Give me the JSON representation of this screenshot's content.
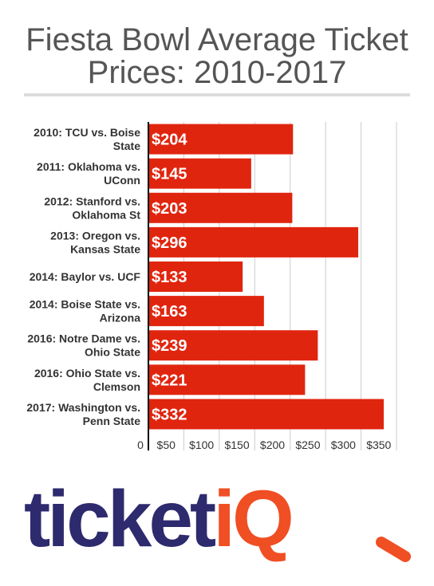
{
  "page": {
    "title": "Fiesta Bowl Average Ticket\nPrices: 2010-2017"
  },
  "logo": {
    "text_main": "ticket",
    "text_accent": "iQ",
    "color_main": "#2e2a6e",
    "color_accent": "#f04e23"
  },
  "colors": {
    "bar": "#e0250f",
    "title": "#555555",
    "label": "#333333",
    "grid": "#cccccc",
    "axis": "#000000"
  },
  "chart_data": {
    "type": "bar",
    "orientation": "horizontal",
    "title": "Fiesta Bowl Average Ticket Prices: 2010-2017",
    "categories": [
      [
        "2010: TCU vs. Boise",
        "State"
      ],
      [
        "2011: Oklahoma vs.",
        "UConn"
      ],
      [
        "2012: Stanford vs.",
        "Oklahoma St"
      ],
      [
        "2013: Oregon vs.",
        "Kansas State"
      ],
      [
        "2014: Baylor vs. UCF"
      ],
      [
        "2014: Boise State vs.",
        "Arizona"
      ],
      [
        "2016: Notre Dame vs.",
        "Ohio State"
      ],
      [
        "2016: Ohio State vs.",
        "Clemson"
      ],
      [
        "2017: Washington vs.",
        "Penn State"
      ]
    ],
    "values": [
      204,
      145,
      203,
      296,
      133,
      163,
      239,
      221,
      332
    ],
    "data_labels": [
      "$204",
      "$145",
      "$203",
      "$296",
      "$133",
      "$163",
      "$239",
      "$221",
      "$332"
    ],
    "xlim": [
      0,
      350
    ],
    "xticks": [
      0,
      50,
      100,
      150,
      200,
      250,
      300,
      350
    ],
    "xtick_labels": [
      "0",
      "$50",
      "$100",
      "$150",
      "$200",
      "$250",
      "$300",
      "$350"
    ],
    "grid": true,
    "legend": "none"
  }
}
